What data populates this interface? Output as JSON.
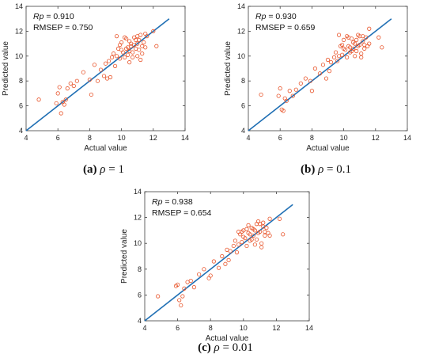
{
  "colors": {
    "points": "#e8542a",
    "fit_line": "#1f6fb4",
    "axes": "#404040"
  },
  "chart_data": [
    {
      "type": "scatter",
      "xlabel": "Actual value",
      "ylabel": "Predicted value",
      "xlim": [
        4,
        14
      ],
      "ylim": [
        4,
        14
      ],
      "xticks": [
        "4",
        "6",
        "8",
        "10",
        "12",
        "14"
      ],
      "yticks": [
        "4",
        "6",
        "8",
        "10",
        "12",
        "14"
      ],
      "stat_rp_label": "Rp",
      "stat_rp_value": " = 0.910",
      "stat_rmsep": "RMSEP = 0.750",
      "caption_tag": "(a)",
      "caption_symbol": "ρ",
      "caption_value": " = 1",
      "fit_line": [
        [
          4,
          4
        ],
        [
          13,
          13
        ]
      ],
      "points": [
        [
          4.8,
          6.5
        ],
        [
          5.9,
          6.2
        ],
        [
          6.0,
          7.0
        ],
        [
          6.1,
          7.5
        ],
        [
          6.2,
          5.4
        ],
        [
          6.3,
          6.3
        ],
        [
          6.4,
          6.1
        ],
        [
          6.5,
          6.5
        ],
        [
          6.6,
          7.4
        ],
        [
          6.8,
          7.8
        ],
        [
          7.0,
          7.6
        ],
        [
          7.2,
          8.0
        ],
        [
          7.6,
          8.7
        ],
        [
          8.0,
          8.1
        ],
        [
          8.1,
          6.9
        ],
        [
          8.3,
          9.3
        ],
        [
          8.5,
          8.0
        ],
        [
          8.7,
          8.9
        ],
        [
          8.9,
          8.4
        ],
        [
          9.0,
          9.4
        ],
        [
          9.1,
          8.2
        ],
        [
          9.2,
          9.6
        ],
        [
          9.3,
          8.3
        ],
        [
          9.4,
          9.9
        ],
        [
          9.5,
          10.2
        ],
        [
          9.6,
          9.2
        ],
        [
          9.7,
          10.0
        ],
        [
          9.8,
          10.6
        ],
        [
          9.9,
          9.8
        ],
        [
          10.0,
          11.1
        ],
        [
          10.1,
          10.3
        ],
        [
          10.2,
          9.9
        ],
        [
          10.3,
          10.6
        ],
        [
          10.4,
          10.1
        ],
        [
          10.5,
          11.2
        ],
        [
          10.5,
          9.5
        ],
        [
          10.6,
          10.8
        ],
        [
          10.7,
          10.3
        ],
        [
          10.8,
          11.5
        ],
        [
          10.9,
          10.6
        ],
        [
          11.0,
          10.0
        ],
        [
          11.0,
          11.0
        ],
        [
          11.1,
          10.5
        ],
        [
          11.2,
          11.7
        ],
        [
          11.3,
          10.2
        ],
        [
          11.4,
          11.1
        ],
        [
          11.5,
          10.7
        ],
        [
          11.6,
          11.6
        ],
        [
          11.2,
          9.7
        ],
        [
          10.9,
          11.3
        ],
        [
          10.6,
          11.0
        ],
        [
          10.3,
          11.4
        ],
        [
          10.0,
          10.5
        ],
        [
          9.7,
          11.6
        ],
        [
          10.8,
          10.9
        ],
        [
          11.1,
          11.3
        ],
        [
          11.5,
          11.8
        ],
        [
          12.0,
          12.0
        ],
        [
          12.2,
          10.8
        ],
        [
          10.4,
          10.7
        ],
        [
          10.7,
          9.9
        ],
        [
          9.9,
          10.9
        ],
        [
          11.3,
          10.8
        ],
        [
          10.2,
          11.5
        ],
        [
          10.5,
          10.4
        ],
        [
          11.0,
          11.6
        ]
      ]
    },
    {
      "type": "scatter",
      "xlabel": "Actual value",
      "ylabel": "Predicted value",
      "xlim": [
        4,
        14
      ],
      "ylim": [
        4,
        14
      ],
      "xticks": [
        "4",
        "6",
        "8",
        "10",
        "12",
        "14"
      ],
      "yticks": [
        "4",
        "6",
        "8",
        "10",
        "12",
        "14"
      ],
      "stat_rp_label": "Rp",
      "stat_rp_value": " = 0.930",
      "stat_rmsep": "RMSEP = 0.659",
      "caption_tag": "(b)",
      "caption_symbol": "ρ",
      "caption_value": " = 0.1",
      "fit_line": [
        [
          4,
          4
        ],
        [
          13,
          13
        ]
      ],
      "points": [
        [
          4.8,
          6.9
        ],
        [
          5.9,
          6.8
        ],
        [
          6.0,
          7.4
        ],
        [
          6.1,
          5.7
        ],
        [
          6.2,
          5.6
        ],
        [
          6.3,
          6.6
        ],
        [
          6.4,
          6.4
        ],
        [
          6.6,
          7.2
        ],
        [
          6.8,
          6.8
        ],
        [
          7.0,
          7.3
        ],
        [
          7.3,
          7.8
        ],
        [
          7.6,
          8.2
        ],
        [
          7.9,
          8.0
        ],
        [
          8.0,
          7.2
        ],
        [
          8.2,
          9.0
        ],
        [
          8.5,
          8.6
        ],
        [
          8.7,
          9.3
        ],
        [
          8.9,
          8.2
        ],
        [
          9.0,
          9.7
        ],
        [
          9.1,
          8.8
        ],
        [
          9.2,
          9.5
        ],
        [
          9.4,
          9.9
        ],
        [
          9.5,
          10.3
        ],
        [
          9.6,
          9.6
        ],
        [
          9.7,
          10.0
        ],
        [
          9.8,
          10.8
        ],
        [
          9.9,
          10.1
        ],
        [
          10.0,
          11.3
        ],
        [
          10.1,
          10.5
        ],
        [
          10.2,
          9.9
        ],
        [
          10.3,
          10.8
        ],
        [
          10.4,
          10.3
        ],
        [
          10.5,
          11.4
        ],
        [
          10.6,
          10.6
        ],
        [
          10.7,
          11.0
        ],
        [
          10.8,
          10.4
        ],
        [
          10.9,
          11.7
        ],
        [
          11.0,
          10.9
        ],
        [
          11.1,
          10.2
        ],
        [
          11.2,
          11.2
        ],
        [
          11.3,
          10.6
        ],
        [
          11.4,
          11.5
        ],
        [
          11.5,
          10.8
        ],
        [
          11.6,
          11.0
        ],
        [
          11.1,
          9.9
        ],
        [
          10.8,
          11.3
        ],
        [
          10.6,
          11.1
        ],
        [
          10.3,
          11.5
        ],
        [
          10.0,
          10.6
        ],
        [
          9.7,
          11.7
        ],
        [
          10.9,
          10.8
        ],
        [
          11.2,
          11.6
        ],
        [
          11.6,
          12.2
        ],
        [
          12.2,
          11.5
        ],
        [
          12.4,
          10.7
        ],
        [
          10.4,
          10.7
        ],
        [
          10.7,
          10.0
        ],
        [
          9.9,
          10.9
        ],
        [
          11.3,
          10.9
        ],
        [
          10.2,
          11.6
        ],
        [
          10.5,
          10.4
        ],
        [
          11.0,
          11.6
        ]
      ]
    },
    {
      "type": "scatter",
      "xlabel": "Actual value",
      "ylabel": "Predicted value",
      "xlim": [
        4,
        14
      ],
      "ylim": [
        4,
        14
      ],
      "xticks": [
        "4",
        "6",
        "8",
        "10",
        "12",
        "14"
      ],
      "yticks": [
        "4",
        "6",
        "8",
        "10",
        "12",
        "14"
      ],
      "stat_rp_label": "Rp",
      "stat_rp_value": " = 0.938",
      "stat_rmsep": "RMSEP = 0.654",
      "caption_tag": "(c)",
      "caption_symbol": "ρ",
      "caption_value": " = 0.01",
      "fit_line": [
        [
          4,
          4
        ],
        [
          13,
          13
        ]
      ],
      "points": [
        [
          4.8,
          5.9
        ],
        [
          5.9,
          6.7
        ],
        [
          6.0,
          6.8
        ],
        [
          6.1,
          5.6
        ],
        [
          6.2,
          5.2
        ],
        [
          6.3,
          5.9
        ],
        [
          6.4,
          6.5
        ],
        [
          6.6,
          7.0
        ],
        [
          6.8,
          7.1
        ],
        [
          7.0,
          6.6
        ],
        [
          7.3,
          7.6
        ],
        [
          7.6,
          8.0
        ],
        [
          7.9,
          7.3
        ],
        [
          8.0,
          7.5
        ],
        [
          8.2,
          8.6
        ],
        [
          8.5,
          8.1
        ],
        [
          8.7,
          9.0
        ],
        [
          8.9,
          8.4
        ],
        [
          9.0,
          9.5
        ],
        [
          9.1,
          8.7
        ],
        [
          9.2,
          9.4
        ],
        [
          9.4,
          9.8
        ],
        [
          9.5,
          10.2
        ],
        [
          9.6,
          9.3
        ],
        [
          9.7,
          9.9
        ],
        [
          9.8,
          10.7
        ],
        [
          9.9,
          10.1
        ],
        [
          10.0,
          11.0
        ],
        [
          10.1,
          10.4
        ],
        [
          10.2,
          9.8
        ],
        [
          10.3,
          10.8
        ],
        [
          10.4,
          10.2
        ],
        [
          10.5,
          11.2
        ],
        [
          10.6,
          10.6
        ],
        [
          10.7,
          11.0
        ],
        [
          10.8,
          10.3
        ],
        [
          10.9,
          11.7
        ],
        [
          11.0,
          10.9
        ],
        [
          11.1,
          10.0
        ],
        [
          11.2,
          11.3
        ],
        [
          11.3,
          10.6
        ],
        [
          11.4,
          11.2
        ],
        [
          11.5,
          10.8
        ],
        [
          11.6,
          10.6
        ],
        [
          11.1,
          9.7
        ],
        [
          10.8,
          11.5
        ],
        [
          10.6,
          11.1
        ],
        [
          10.3,
          11.4
        ],
        [
          10.0,
          10.5
        ],
        [
          9.7,
          10.9
        ],
        [
          10.9,
          10.8
        ],
        [
          11.2,
          11.6
        ],
        [
          11.6,
          11.9
        ],
        [
          12.2,
          11.9
        ],
        [
          12.4,
          10.7
        ],
        [
          10.4,
          10.7
        ],
        [
          10.7,
          9.9
        ],
        [
          9.9,
          10.9
        ],
        [
          11.3,
          10.9
        ],
        [
          10.2,
          11.1
        ],
        [
          10.5,
          10.3
        ],
        [
          11.0,
          11.5
        ]
      ]
    }
  ]
}
